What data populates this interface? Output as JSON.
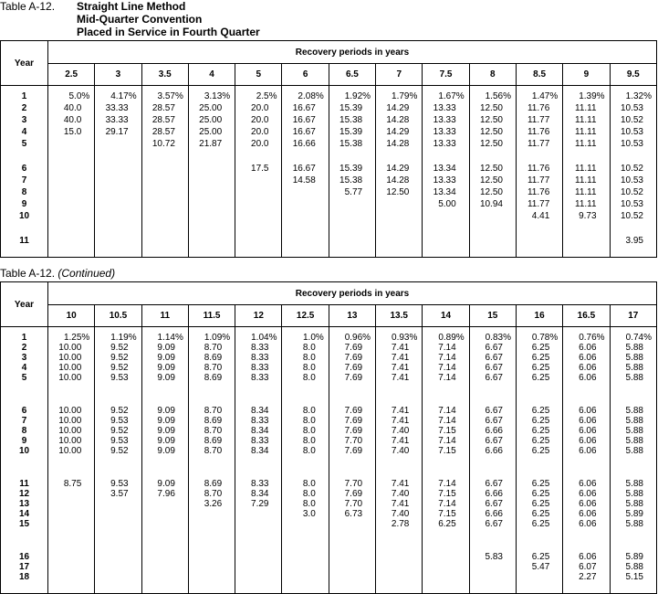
{
  "tables": [
    {
      "caption": "Table A-12.",
      "title": [
        "Straight Line Method",
        "Mid-Quarter Convention",
        "Placed in Service in Fourth Quarter"
      ],
      "year_header": "Year",
      "group_header": "Recovery periods in years",
      "years": [
        "1",
        "2",
        "3",
        "4",
        "5",
        "6",
        "7",
        "8",
        "9",
        "10",
        "11"
      ],
      "columns": [
        {
          "header": "2.5",
          "values": [
            "5.0%",
            "40.0",
            "40.0",
            "15.0",
            null,
            null,
            null,
            null,
            null,
            null,
            null
          ]
        },
        {
          "header": "3",
          "values": [
            "4.17%",
            "33.33",
            "33.33",
            "29.17",
            null,
            null,
            null,
            null,
            null,
            null,
            null
          ]
        },
        {
          "header": "3.5",
          "values": [
            "3.57%",
            "28.57",
            "28.57",
            "28.57",
            "10.72",
            null,
            null,
            null,
            null,
            null,
            null
          ]
        },
        {
          "header": "4",
          "values": [
            "3.13%",
            "25.00",
            "25.00",
            "25.00",
            "21.87",
            null,
            null,
            null,
            null,
            null,
            null
          ]
        },
        {
          "header": "5",
          "values": [
            "2.5%",
            "20.0",
            "20.0",
            "20.0",
            "20.0",
            "17.5",
            null,
            null,
            null,
            null,
            null
          ]
        },
        {
          "header": "6",
          "values": [
            "2.08%",
            "16.67",
            "16.67",
            "16.67",
            "16.66",
            "16.67",
            "14.58",
            null,
            null,
            null,
            null
          ]
        },
        {
          "header": "6.5",
          "values": [
            "1.92%",
            "15.39",
            "15.38",
            "15.39",
            "15.38",
            "15.39",
            "15.38",
            "5.77",
            null,
            null,
            null
          ]
        },
        {
          "header": "7",
          "values": [
            "1.79%",
            "14.29",
            "14.28",
            "14.29",
            "14.28",
            "14.29",
            "14.28",
            "12.50",
            null,
            null,
            null
          ]
        },
        {
          "header": "7.5",
          "values": [
            "1.67%",
            "13.33",
            "13.33",
            "13.33",
            "13.33",
            "13.34",
            "13.33",
            "13.34",
            "5.00",
            null,
            null
          ]
        },
        {
          "header": "8",
          "values": [
            "1.56%",
            "12.50",
            "12.50",
            "12.50",
            "12.50",
            "12.50",
            "12.50",
            "12.50",
            "10.94",
            null,
            null
          ]
        },
        {
          "header": "8.5",
          "values": [
            "1.47%",
            "11.76",
            "11.77",
            "11.76",
            "11.77",
            "11.76",
            "11.77",
            "11.76",
            "11.77",
            "4.41",
            null
          ]
        },
        {
          "header": "9",
          "values": [
            "1.39%",
            "11.11",
            "11.11",
            "11.11",
            "11.11",
            "11.11",
            "11.11",
            "11.11",
            "11.11",
            "9.73",
            null
          ]
        },
        {
          "header": "9.5",
          "values": [
            "1.32%",
            "10.53",
            "10.52",
            "10.53",
            "10.53",
            "10.52",
            "10.53",
            "10.52",
            "10.53",
            "10.52",
            "3.95"
          ]
        }
      ]
    },
    {
      "caption": "Table A-12.",
      "note": "(Continued)",
      "year_header": "Year",
      "group_header": "Recovery periods in years",
      "years": [
        "1",
        "2",
        "3",
        "4",
        "5",
        "6",
        "7",
        "8",
        "9",
        "10",
        "11",
        "12",
        "13",
        "14",
        "15",
        "16",
        "17",
        "18"
      ],
      "columns": [
        {
          "header": "10",
          "values": [
            "1.25%",
            "10.00",
            "10.00",
            "10.00",
            "10.00",
            "10.00",
            "10.00",
            "10.00",
            "10.00",
            "10.00",
            "8.75",
            null,
            null,
            null,
            null,
            null,
            null,
            null
          ]
        },
        {
          "header": "10.5",
          "values": [
            "1.19%",
            "9.52",
            "9.52",
            "9.52",
            "9.53",
            "9.52",
            "9.53",
            "9.52",
            "9.53",
            "9.52",
            "9.53",
            "3.57",
            null,
            null,
            null,
            null,
            null,
            null
          ]
        },
        {
          "header": "11",
          "values": [
            "1.14%",
            "9.09",
            "9.09",
            "9.09",
            "9.09",
            "9.09",
            "9.09",
            "9.09",
            "9.09",
            "9.09",
            "9.09",
            "7.96",
            null,
            null,
            null,
            null,
            null,
            null
          ]
        },
        {
          "header": "11.5",
          "values": [
            "1.09%",
            "8.70",
            "8.69",
            "8.70",
            "8.69",
            "8.70",
            "8.69",
            "8.70",
            "8.69",
            "8.70",
            "8.69",
            "8.70",
            "3.26",
            null,
            null,
            null,
            null,
            null
          ]
        },
        {
          "header": "12",
          "values": [
            "1.04%",
            "8.33",
            "8.33",
            "8.33",
            "8.33",
            "8.34",
            "8.33",
            "8.34",
            "8.33",
            "8.34",
            "8.33",
            "8.34",
            "7.29",
            null,
            null,
            null,
            null,
            null
          ]
        },
        {
          "header": "12.5",
          "values": [
            "1.0%",
            "8.0",
            "8.0",
            "8.0",
            "8.0",
            "8.0",
            "8.0",
            "8.0",
            "8.0",
            "8.0",
            "8.0",
            "8.0",
            "8.0",
            "3.0",
            null,
            null,
            null,
            null
          ]
        },
        {
          "header": "13",
          "values": [
            "0.96%",
            "7.69",
            "7.69",
            "7.69",
            "7.69",
            "7.69",
            "7.69",
            "7.69",
            "7.70",
            "7.69",
            "7.70",
            "7.69",
            "7.70",
            "6.73",
            null,
            null,
            null,
            null
          ]
        },
        {
          "header": "13.5",
          "values": [
            "0.93%",
            "7.41",
            "7.41",
            "7.41",
            "7.41",
            "7.41",
            "7.41",
            "7.40",
            "7.41",
            "7.40",
            "7.41",
            "7.40",
            "7.41",
            "7.40",
            "2.78",
            null,
            null,
            null
          ]
        },
        {
          "header": "14",
          "values": [
            "0.89%",
            "7.14",
            "7.14",
            "7.14",
            "7.14",
            "7.14",
            "7.14",
            "7.15",
            "7.14",
            "7.15",
            "7.14",
            "7.15",
            "7.14",
            "7.15",
            "6.25",
            null,
            null,
            null
          ]
        },
        {
          "header": "15",
          "values": [
            "0.83%",
            "6.67",
            "6.67",
            "6.67",
            "6.67",
            "6.67",
            "6.67",
            "6.66",
            "6.67",
            "6.66",
            "6.67",
            "6.66",
            "6.67",
            "6.66",
            "6.67",
            "5.83",
            null,
            null
          ]
        },
        {
          "header": "16",
          "values": [
            "0.78%",
            "6.25",
            "6.25",
            "6.25",
            "6.25",
            "6.25",
            "6.25",
            "6.25",
            "6.25",
            "6.25",
            "6.25",
            "6.25",
            "6.25",
            "6.25",
            "6.25",
            "6.25",
            "5.47",
            null
          ]
        },
        {
          "header": "16.5",
          "values": [
            "0.76%",
            "6.06",
            "6.06",
            "6.06",
            "6.06",
            "6.06",
            "6.06",
            "6.06",
            "6.06",
            "6.06",
            "6.06",
            "6.06",
            "6.06",
            "6.06",
            "6.06",
            "6.06",
            "6.07",
            "2.27"
          ]
        },
        {
          "header": "17",
          "values": [
            "0.74%",
            "5.88",
            "5.88",
            "5.88",
            "5.88",
            "5.88",
            "5.88",
            "5.88",
            "5.88",
            "5.88",
            "5.88",
            "5.88",
            "5.88",
            "5.89",
            "5.88",
            "5.89",
            "5.88",
            "5.15"
          ]
        }
      ]
    }
  ]
}
